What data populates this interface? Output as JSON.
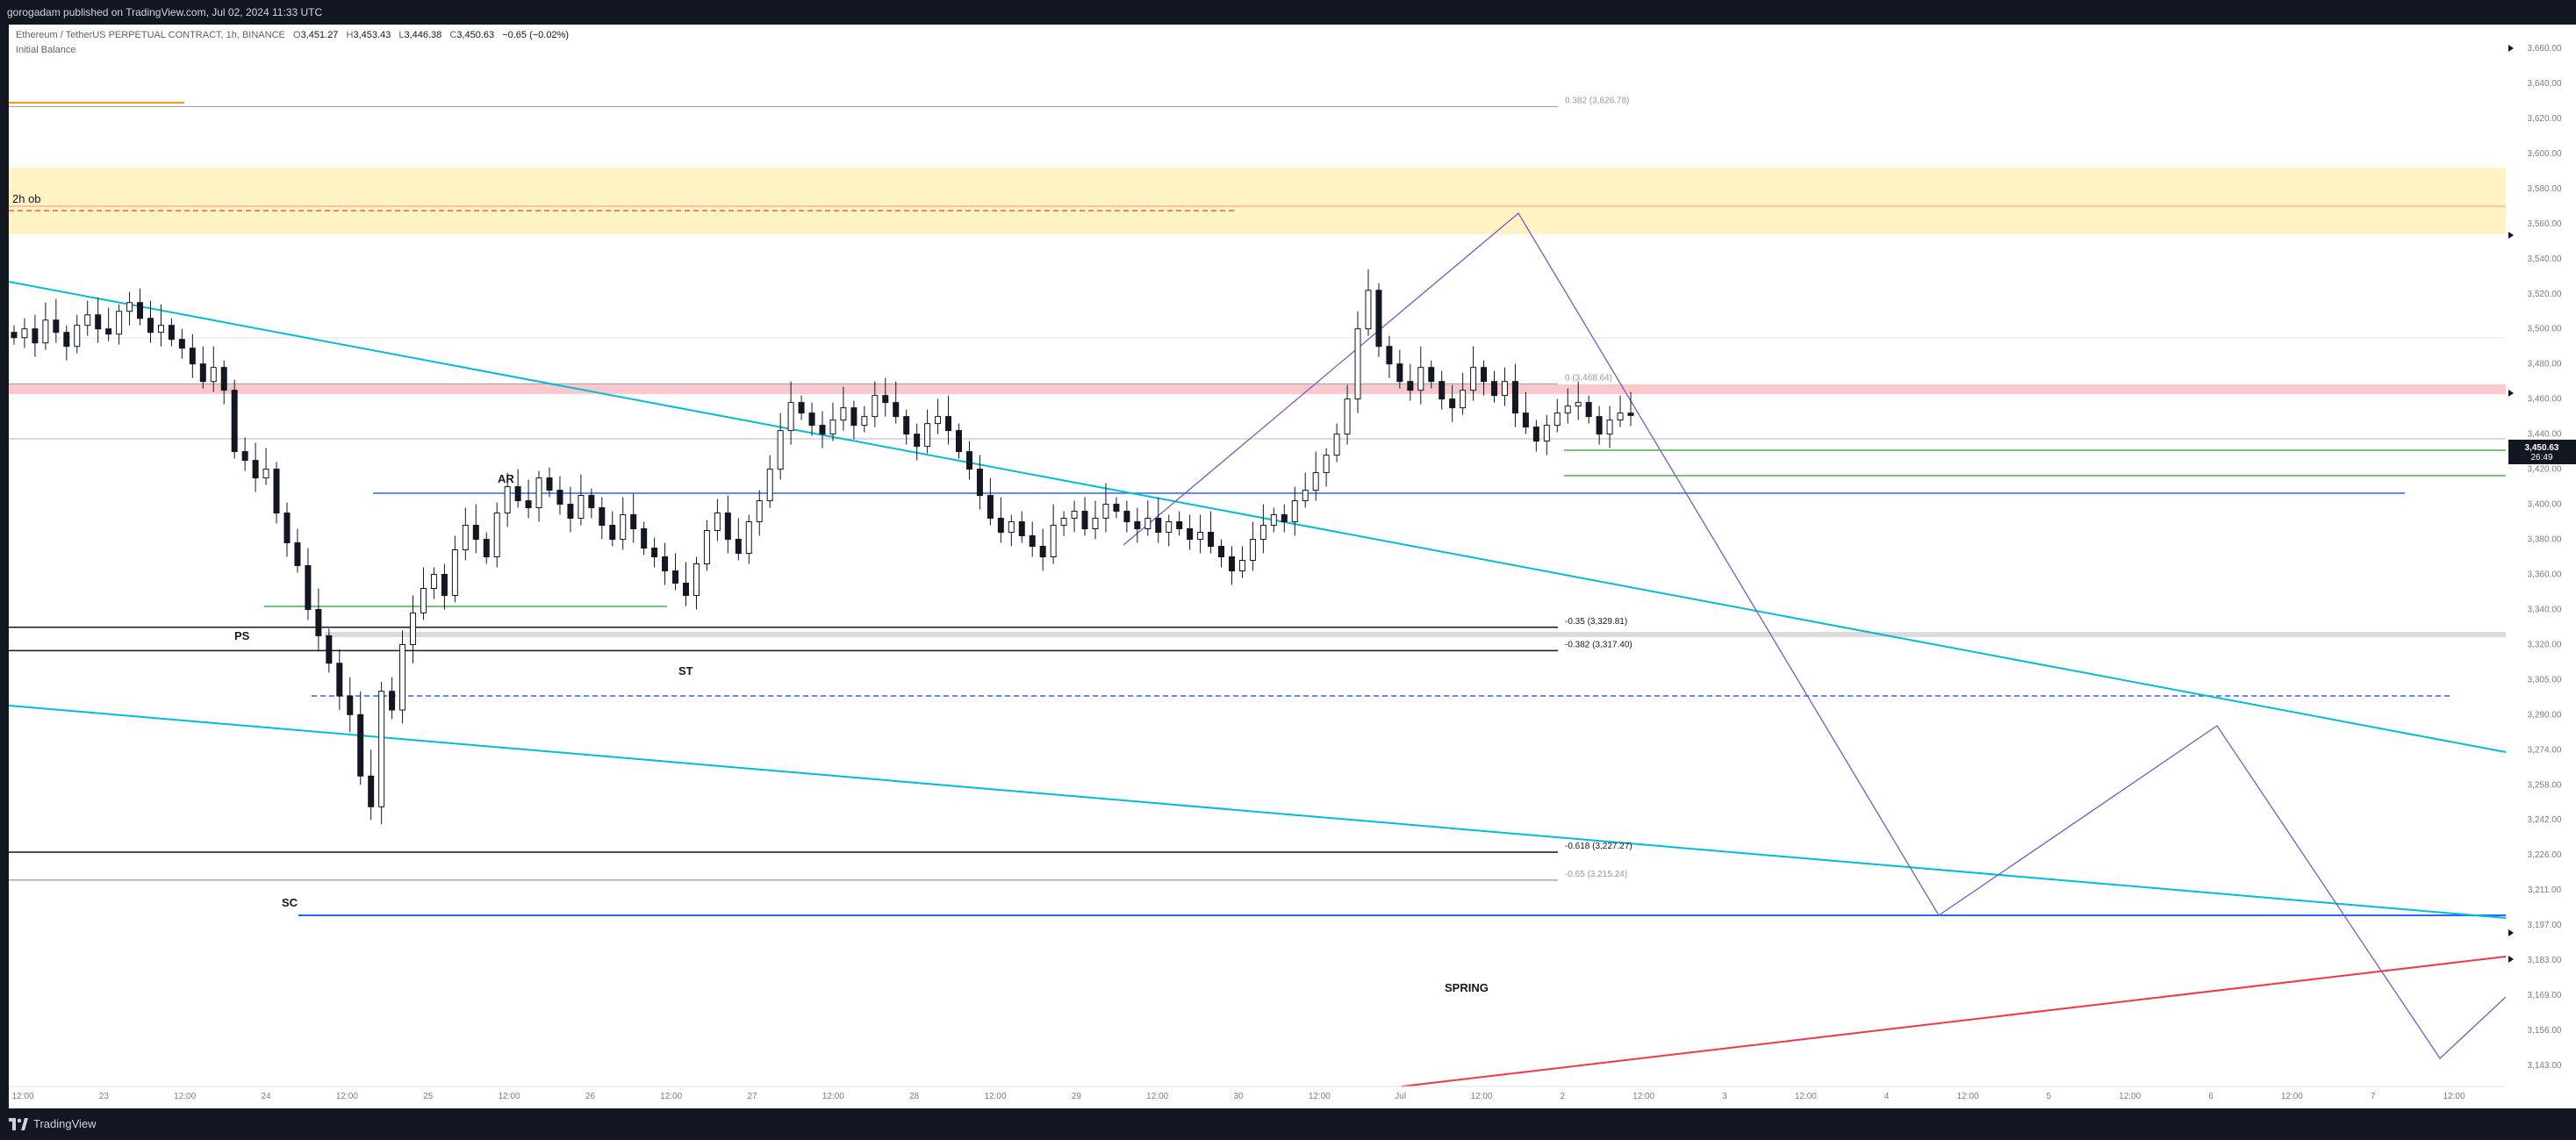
{
  "header": {
    "published": "gorogadam published on TradingView.com, Jul 02, 2024 11:33 UTC"
  },
  "legend": {
    "symbol": "Ethereum / TetherUS PERPETUAL CONTRACT, 1h, BINANCE",
    "o_label": "O",
    "o": "3,451.27",
    "h_label": "H",
    "h": "3,453.43",
    "l_label": "L",
    "l": "3,446.38",
    "c_label": "C",
    "c": "3,450.63",
    "change": "−0.65 (−0.02%)",
    "indicator": "Initial Balance"
  },
  "footer": {
    "logo_text": "TradingView"
  },
  "colors": {
    "up": "#26a69a",
    "down": "#131722",
    "trendline": "#00bcd4",
    "projection": "#7e57c2",
    "support": "#2962ff",
    "ob_zone": "#fff3c4",
    "resistance_zone": "#f8c8cc",
    "green_line": "#4caf50",
    "red_line": "#f23645"
  },
  "chart_data": {
    "type": "candlestick",
    "symbol": "ETHUSDT.P",
    "interval": "1h",
    "last_price": "3,450.63",
    "countdown": "26:49",
    "y_axis_ticks": [
      "3,660.00",
      "3,640.00",
      "3,620.00",
      "3,600.00",
      "3,580.00",
      "3,560.00",
      "3,540.00",
      "3,520.00",
      "3,500.00",
      "3,480.00",
      "3,460.00",
      "3,440.00",
      "3,420.00",
      "3,400.00",
      "3,380.00",
      "3,360.00",
      "3,340.00",
      "3,320.00",
      "3,305.00",
      "3,290.00",
      "3,274.00",
      "3,258.00",
      "3,242.00",
      "3,226.00",
      "3,211.00",
      "3,197.00",
      "3,183.00",
      "3,169.00",
      "3,156.00",
      "3,143.00"
    ],
    "x_axis_ticks": [
      "12:00",
      "23",
      "12:00",
      "24",
      "12:00",
      "25",
      "12:00",
      "26",
      "12:00",
      "27",
      "12:00",
      "28",
      "12:00",
      "29",
      "12:00",
      "30",
      "12:00",
      "Jul",
      "12:00",
      "2",
      "12:00",
      "3",
      "12:00",
      "4",
      "12:00",
      "5",
      "12:00",
      "6",
      "12:00",
      "7",
      "12:00"
    ],
    "fib_levels": [
      {
        "label": "0.382 (3,626.78)",
        "value": 3626.78
      },
      {
        "label": "0 (3,468.64)",
        "value": 3468.64
      },
      {
        "label": "-0.35 (3,329.81)",
        "value": 3329.81
      },
      {
        "label": "-0.382 (3,317.40)",
        "value": 3317.4
      },
      {
        "label": "-0.618 (3,227.27)",
        "value": 3227.27
      },
      {
        "label": "-0.65 (3,215.24)",
        "value": 3215.24
      }
    ],
    "annotations": [
      "2h ob",
      "AR",
      "PS",
      "ST",
      "SC",
      "SPRING"
    ],
    "series": [
      {
        "name": "ETHUSDT.P",
        "close": [
          3495,
          3500,
          3492,
          3505,
          3498,
          3490,
          3502,
          3508,
          3500,
          3497,
          3510,
          3515,
          3506,
          3498,
          3502,
          3494,
          3489,
          3480,
          3470,
          3478,
          3465,
          3430,
          3425,
          3415,
          3420,
          3395,
          3378,
          3365,
          3340,
          3325,
          3312,
          3298,
          3290,
          3262,
          3248,
          3300,
          3292,
          3320,
          3338,
          3352,
          3360,
          3348,
          3374,
          3388,
          3380,
          3370,
          3395,
          3410,
          3402,
          3398,
          3415,
          3408,
          3400,
          3392,
          3405,
          3398,
          3388,
          3380,
          3394,
          3386,
          3375,
          3370,
          3362,
          3355,
          3348,
          3366,
          3385,
          3395,
          3380,
          3372,
          3390,
          3402,
          3420,
          3442,
          3458,
          3452,
          3445,
          3440,
          3448,
          3455,
          3445,
          3450,
          3462,
          3458,
          3450,
          3440,
          3433,
          3446,
          3450,
          3442,
          3430,
          3420,
          3405,
          3392,
          3384,
          3390,
          3382,
          3376,
          3370,
          3388,
          3392,
          3396,
          3386,
          3392,
          3400,
          3396,
          3390,
          3386,
          3392,
          3384,
          3390,
          3386,
          3380,
          3384,
          3376,
          3370,
          3362,
          3368,
          3380,
          3388,
          3394,
          3390,
          3402,
          3408,
          3418,
          3428,
          3440,
          3460,
          3500,
          3522,
          3490,
          3480,
          3470,
          3465,
          3478,
          3470,
          3460,
          3455,
          3465,
          3478,
          3470,
          3462,
          3470,
          3452,
          3444,
          3436,
          3445,
          3452,
          3456,
          3458,
          3450,
          3440,
          3448,
          3452,
          3450.63
        ]
      }
    ],
    "ylim": [
      3135,
      3668
    ],
    "x_range_days": [
      "Jun 22",
      "Jul 7"
    ]
  }
}
